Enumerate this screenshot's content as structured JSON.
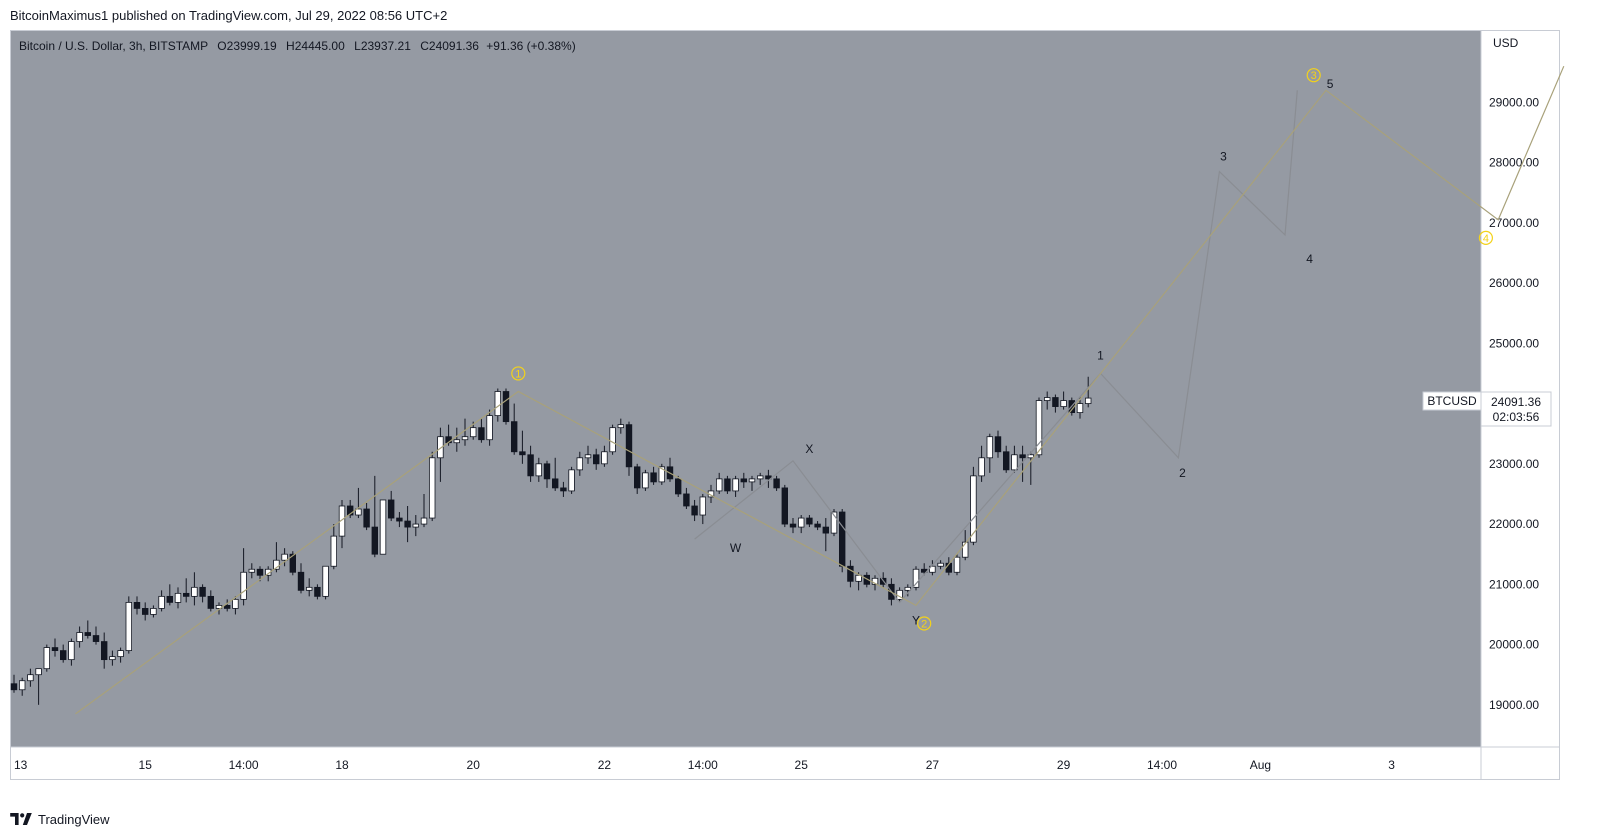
{
  "header": {
    "published": "BitcoinMaximus1 published on TradingView.com, Jul 29, 2022 08:56 UTC+2"
  },
  "legend": {
    "symbol": "Bitcoin / U.S. Dollar, 3h, BITSTAMP",
    "o_label": "O",
    "o": "23999.19",
    "h_label": "H",
    "h": "24445.00",
    "l_label": "L",
    "l": "23937.21",
    "c_label": "C",
    "c": "24091.36",
    "change": "+91.36 (+0.38%)"
  },
  "price_tag": {
    "symbol": "BTCUSD",
    "price": "24091.36",
    "countdown": "02:03:56"
  },
  "footer": {
    "brand": "TradingView"
  },
  "colors": {
    "plot_bg": "#959aa3",
    "wave_major": "#a8a17a",
    "wave_minor": "#8a8d93",
    "circle_label": "#f3d21a",
    "candle_up": "#ffffff",
    "candle_down": "#131722"
  },
  "chart_data": {
    "type": "candlestick",
    "title": "Bitcoin / U.S. Dollar, 3h, BITSTAMP",
    "currency": "USD",
    "ylim": [
      18300,
      30200
    ],
    "y_ticks": [
      19000,
      20000,
      21000,
      22000,
      23000,
      24000,
      25000,
      26000,
      27000,
      28000,
      29000
    ],
    "x_ticks": [
      {
        "label": "13",
        "i": 0
      },
      {
        "label": "15",
        "i": 16
      },
      {
        "label": "14:00",
        "i": 28
      },
      {
        "label": "18",
        "i": 40
      },
      {
        "label": "20",
        "i": 56
      },
      {
        "label": "22",
        "i": 72
      },
      {
        "label": "14:00",
        "i": 84
      },
      {
        "label": "25",
        "i": 96
      },
      {
        "label": "27",
        "i": 112
      },
      {
        "label": "29",
        "i": 128
      },
      {
        "label": "14:00",
        "i": 140
      },
      {
        "label": "Aug",
        "i": 152
      },
      {
        "label": "3",
        "i": 168
      }
    ],
    "candles": [
      [
        19350,
        19500,
        19200,
        19250
      ],
      [
        19250,
        19450,
        19150,
        19400
      ],
      [
        19400,
        19600,
        19300,
        19500
      ],
      [
        19500,
        19550,
        19000,
        19600
      ],
      [
        19600,
        20000,
        19550,
        19950
      ],
      [
        19950,
        20100,
        19800,
        19900
      ],
      [
        19900,
        20000,
        19700,
        19750
      ],
      [
        19750,
        20100,
        19650,
        20050
      ],
      [
        20050,
        20300,
        19950,
        20200
      ],
      [
        20200,
        20400,
        20100,
        20150
      ],
      [
        20150,
        20300,
        20000,
        20050
      ],
      [
        20050,
        20200,
        19600,
        19750
      ],
      [
        19750,
        19900,
        19650,
        19800
      ],
      [
        19800,
        19950,
        19700,
        19900
      ],
      [
        19900,
        20800,
        19850,
        20700
      ],
      [
        20700,
        20800,
        20500,
        20600
      ],
      [
        20600,
        20700,
        20400,
        20500
      ],
      [
        20500,
        20650,
        20450,
        20600
      ],
      [
        20600,
        20900,
        20550,
        20800
      ],
      [
        20800,
        21000,
        20650,
        20700
      ],
      [
        20700,
        20950,
        20600,
        20850
      ],
      [
        20850,
        21100,
        20700,
        20800
      ],
      [
        20800,
        21200,
        20650,
        20950
      ],
      [
        20950,
        21000,
        20700,
        20800
      ],
      [
        20800,
        20900,
        20550,
        20600
      ],
      [
        20600,
        20700,
        20500,
        20650
      ],
      [
        20650,
        20750,
        20550,
        20600
      ],
      [
        20600,
        20800,
        20500,
        20750
      ],
      [
        20750,
        21600,
        20650,
        21200
      ],
      [
        21200,
        21350,
        21100,
        21250
      ],
      [
        21250,
        21300,
        21050,
        21150
      ],
      [
        21150,
        21300,
        21050,
        21250
      ],
      [
        21250,
        21700,
        21200,
        21400
      ],
      [
        21400,
        21600,
        21300,
        21500
      ],
      [
        21500,
        21550,
        21150,
        21200
      ],
      [
        21200,
        21350,
        20850,
        20900
      ],
      [
        20900,
        21100,
        20800,
        20950
      ],
      [
        20950,
        21000,
        20750,
        20800
      ],
      [
        20800,
        21300,
        20750,
        21300
      ],
      [
        21300,
        22000,
        21250,
        21800
      ],
      [
        21800,
        22400,
        21600,
        22300
      ],
      [
        22300,
        22400,
        22100,
        22150
      ],
      [
        22150,
        22600,
        22100,
        22250
      ],
      [
        22250,
        22350,
        21900,
        21950
      ],
      [
        21950,
        22800,
        21450,
        21500
      ],
      [
        21500,
        22300,
        21500,
        22400
      ],
      [
        22400,
        22550,
        22050,
        22100
      ],
      [
        22100,
        22200,
        21950,
        22050
      ],
      [
        22050,
        22300,
        21700,
        21950
      ],
      [
        21950,
        22150,
        21800,
        22000
      ],
      [
        22000,
        22500,
        21950,
        22100
      ],
      [
        22100,
        23200,
        22050,
        23100
      ],
      [
        23100,
        23600,
        22700,
        23450
      ],
      [
        23450,
        23650,
        23300,
        23350
      ],
      [
        23350,
        23600,
        23200,
        23400
      ],
      [
        23400,
        23750,
        23300,
        23450
      ],
      [
        23450,
        23700,
        23400,
        23600
      ],
      [
        23600,
        23750,
        23350,
        23400
      ],
      [
        23400,
        23900,
        23300,
        23800
      ],
      [
        23800,
        24250,
        23700,
        24200
      ],
      [
        24200,
        24250,
        23650,
        23700
      ],
      [
        23700,
        24000,
        23150,
        23200
      ],
      [
        23200,
        23550,
        23000,
        23150
      ],
      [
        23150,
        23300,
        22700,
        22800
      ],
      [
        22800,
        23100,
        22700,
        23000
      ],
      [
        23000,
        23050,
        22600,
        22750
      ],
      [
        22750,
        23100,
        22550,
        22600
      ],
      [
        22600,
        22700,
        22450,
        22550
      ],
      [
        22550,
        22950,
        22500,
        22900
      ],
      [
        22900,
        23200,
        22800,
        23100
      ],
      [
        23100,
        23300,
        23000,
        23150
      ],
      [
        23150,
        23250,
        22900,
        23000
      ],
      [
        23000,
        23300,
        22950,
        23200
      ],
      [
        23200,
        23650,
        23150,
        23600
      ],
      [
        23600,
        23750,
        23500,
        23650
      ],
      [
        23650,
        23700,
        22800,
        22950
      ],
      [
        22950,
        23000,
        22500,
        22600
      ],
      [
        22600,
        22900,
        22550,
        22850
      ],
      [
        22850,
        22950,
        22650,
        22700
      ],
      [
        22700,
        23000,
        22650,
        22950
      ],
      [
        22950,
        23100,
        22700,
        22750
      ],
      [
        22750,
        22800,
        22450,
        22500
      ],
      [
        22500,
        22600,
        22250,
        22300
      ],
      [
        22300,
        22400,
        22050,
        22150
      ],
      [
        22150,
        22500,
        22000,
        22450
      ],
      [
        22450,
        22650,
        22350,
        22550
      ],
      [
        22550,
        22850,
        22500,
        22750
      ],
      [
        22750,
        22800,
        22500,
        22550
      ],
      [
        22550,
        22800,
        22450,
        22750
      ],
      [
        22750,
        22850,
        22600,
        22700
      ],
      [
        22700,
        22800,
        22550,
        22750
      ],
      [
        22750,
        22850,
        22650,
        22800
      ],
      [
        22800,
        22900,
        22600,
        22750
      ],
      [
        22750,
        22800,
        22550,
        22600
      ],
      [
        22600,
        22650,
        21950,
        22000
      ],
      [
        22000,
        22100,
        21850,
        21950
      ],
      [
        21950,
        22150,
        21850,
        22100
      ],
      [
        22100,
        22150,
        21950,
        22000
      ],
      [
        22000,
        22050,
        21900,
        21950
      ],
      [
        21950,
        22100,
        21550,
        21850
      ],
      [
        21850,
        22250,
        21800,
        22200
      ],
      [
        22200,
        22250,
        21200,
        21300
      ],
      [
        21300,
        21400,
        20950,
        21050
      ],
      [
        21050,
        21200,
        20900,
        21150
      ],
      [
        21150,
        21200,
        20950,
        21000
      ],
      [
        21000,
        21150,
        20900,
        21100
      ],
      [
        21100,
        21200,
        20950,
        21000
      ],
      [
        21000,
        21100,
        20650,
        20750
      ],
      [
        20750,
        20950,
        20700,
        20900
      ],
      [
        20900,
        21000,
        20800,
        20950
      ],
      [
        20950,
        21300,
        20900,
        21250
      ],
      [
        21250,
        21350,
        21150,
        21200
      ],
      [
        21200,
        21400,
        21150,
        21300
      ],
      [
        21300,
        21400,
        21250,
        21350
      ],
      [
        21350,
        21450,
        21150,
        21200
      ],
      [
        21200,
        21500,
        21150,
        21450
      ],
      [
        21450,
        21900,
        21400,
        21700
      ],
      [
        21700,
        22950,
        21650,
        22800
      ],
      [
        22800,
        23300,
        22700,
        23100
      ],
      [
        23100,
        23500,
        22850,
        23450
      ],
      [
        23450,
        23550,
        23100,
        23200
      ],
      [
        23200,
        23300,
        22850,
        22900
      ],
      [
        22900,
        23300,
        22850,
        23150
      ],
      [
        23150,
        23300,
        22700,
        23100
      ],
      [
        23100,
        23200,
        22650,
        23150
      ],
      [
        23150,
        24100,
        23100,
        24050
      ],
      [
        24050,
        24200,
        23900,
        24100
      ],
      [
        24100,
        24150,
        23850,
        23950
      ],
      [
        23950,
        24200,
        23900,
        24050
      ],
      [
        24050,
        24100,
        23800,
        23850
      ],
      [
        23850,
        24100,
        23750,
        24000
      ],
      [
        24000,
        24445,
        23937,
        24091
      ]
    ],
    "wave_major": [
      [
        7.5,
        18850
      ],
      [
        61.5,
        24200
      ],
      [
        110,
        20650
      ],
      [
        160,
        29200
      ],
      [
        181,
        27050
      ],
      [
        189,
        29600
      ]
    ],
    "wave_minor": [
      [
        83,
        21750
      ],
      [
        95,
        23050
      ],
      [
        108,
        20700
      ],
      [
        132.5,
        24500
      ],
      [
        142,
        23100
      ],
      [
        147,
        27850
      ],
      [
        155,
        26800
      ],
      [
        156.5,
        29200
      ]
    ],
    "wave_labels": [
      {
        "text": "1",
        "i": 61.5,
        "y": 24500,
        "style": "circle"
      },
      {
        "text": "2",
        "i": 111,
        "y": 20350,
        "style": "circle"
      },
      {
        "text": "3",
        "i": 158.5,
        "y": 29450,
        "style": "circle"
      },
      {
        "text": "4",
        "i": 179.5,
        "y": 26750,
        "style": "circle"
      },
      {
        "text": "W",
        "i": 88,
        "y": 21600,
        "style": "plain"
      },
      {
        "text": "X",
        "i": 97,
        "y": 23250,
        "style": "plain"
      },
      {
        "text": "Y",
        "i": 110,
        "y": 20400,
        "style": "plain"
      },
      {
        "text": "1",
        "i": 132.5,
        "y": 24800,
        "style": "plain"
      },
      {
        "text": "2",
        "i": 142.5,
        "y": 22850,
        "style": "plain"
      },
      {
        "text": "3",
        "i": 147.5,
        "y": 28100,
        "style": "plain"
      },
      {
        "text": "4",
        "i": 158,
        "y": 26400,
        "style": "plain"
      },
      {
        "text": "5",
        "i": 160.5,
        "y": 29300,
        "style": "plain"
      }
    ]
  }
}
